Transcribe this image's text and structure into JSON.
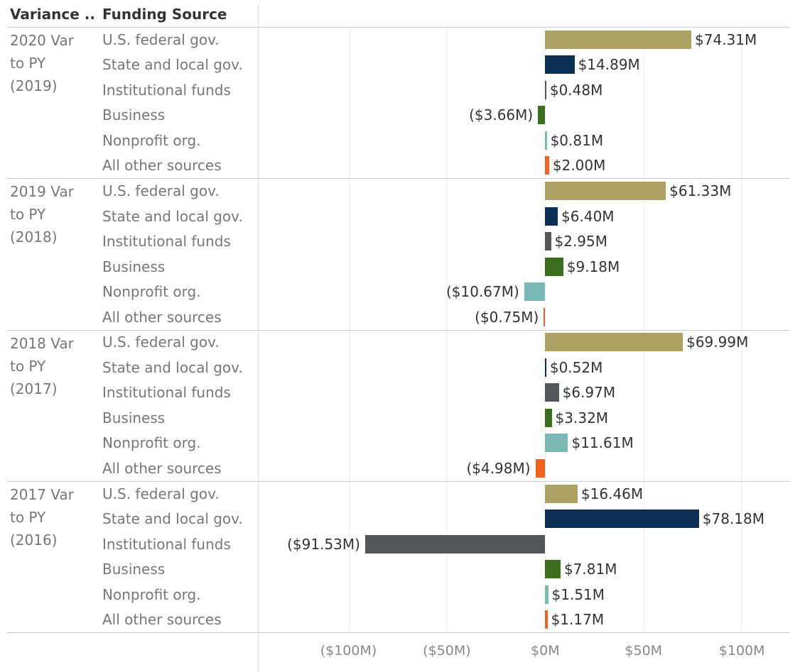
{
  "chart_data": {
    "type": "bar",
    "orientation": "horizontal",
    "headers": [
      "Variance ..",
      "Funding Source"
    ],
    "categories": [
      "U.S. federal gov.",
      "State and local gov.",
      "Institutional funds",
      "Business",
      "Nonprofit org.",
      "All other sources"
    ],
    "colors": [
      "#ada063",
      "#0c2f56",
      "#53575a",
      "#3b6e1d",
      "#7ab9b5",
      "#f26322"
    ],
    "groups": [
      {
        "name": "2020 Var to PY (2019)",
        "values": [
          74.31,
          14.89,
          0.48,
          -3.66,
          0.81,
          2.0
        ],
        "value_labels": [
          "$74.31M",
          "$14.89M",
          "$0.48M",
          "($3.66M)",
          "$0.81M",
          "$2.00M"
        ]
      },
      {
        "name": "2019 Var to PY (2018)",
        "values": [
          61.33,
          6.4,
          2.95,
          9.18,
          -10.67,
          -0.75
        ],
        "value_labels": [
          "$61.33M",
          "$6.40M",
          "$2.95M",
          "$9.18M",
          "($10.67M)",
          "($0.75M)"
        ]
      },
      {
        "name": "2018 Var to PY (2017)",
        "values": [
          69.99,
          0.52,
          6.97,
          3.32,
          11.61,
          -4.98
        ],
        "value_labels": [
          "$69.99M",
          "$0.52M",
          "$6.97M",
          "$3.32M",
          "$11.61M",
          "($4.98M)"
        ]
      },
      {
        "name": "2017 Var to PY (2016)",
        "values": [
          16.46,
          78.18,
          -91.53,
          7.81,
          1.51,
          1.17
        ],
        "value_labels": [
          "$16.46M",
          "$78.18M",
          "($91.53M)",
          "$7.81M",
          "$1.51M",
          "$1.17M"
        ]
      }
    ],
    "xlim": [
      -145.7,
      124.5
    ],
    "xticks": [
      {
        "value": -100,
        "label": "($100M)"
      },
      {
        "value": -50,
        "label": "($50M)"
      },
      {
        "value": 0,
        "label": "$0M"
      },
      {
        "value": 50,
        "label": "$50M"
      },
      {
        "value": 100,
        "label": "$100M"
      }
    ],
    "grid": true
  }
}
